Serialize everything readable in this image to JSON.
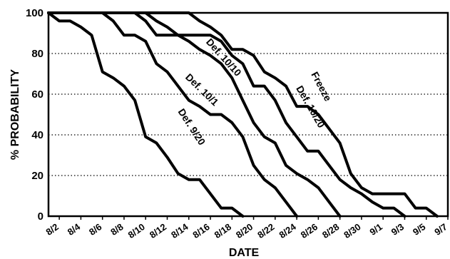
{
  "chart_data": {
    "type": "line",
    "xlabel": "DATE",
    "ylabel": "% PROBABILITY",
    "ylim": [
      0,
      100
    ],
    "yticks": [
      0,
      20,
      40,
      60,
      80,
      100
    ],
    "xticks": [
      "8/2",
      "8/4",
      "8/6",
      "8/8",
      "8/10",
      "8/12",
      "8/14",
      "8/16",
      "8/18",
      "8/20",
      "8/22",
      "8/24",
      "8/26",
      "8/28",
      "8/30",
      "9/1",
      "9/3",
      "9/5",
      "9/7"
    ],
    "xlim": [
      "8/1",
      "9/7"
    ],
    "grid": "dotted horizontal",
    "series": [
      {
        "name": "Def. 9/20",
        "points": [
          [
            "8/1",
            100
          ],
          [
            "8/2",
            96
          ],
          [
            "8/3",
            96
          ],
          [
            "8/4",
            93
          ],
          [
            "8/5",
            89
          ],
          [
            "8/6",
            71
          ],
          [
            "8/7",
            68
          ],
          [
            "8/8",
            64
          ],
          [
            "8/9",
            57
          ],
          [
            "8/10",
            39
          ],
          [
            "8/11",
            36
          ],
          [
            "8/12",
            29
          ],
          [
            "8/13",
            21
          ],
          [
            "8/14",
            18
          ],
          [
            "8/15",
            18
          ],
          [
            "8/16",
            11
          ],
          [
            "8/17",
            4
          ],
          [
            "8/18",
            4
          ],
          [
            "8/19",
            0
          ]
        ]
      },
      {
        "name": "Def. 10/1",
        "points": [
          [
            "8/1",
            100
          ],
          [
            "8/6",
            100
          ],
          [
            "8/7",
            96
          ],
          [
            "8/8",
            89
          ],
          [
            "8/9",
            89
          ],
          [
            "8/10",
            86
          ],
          [
            "8/11",
            75
          ],
          [
            "8/12",
            71
          ],
          [
            "8/13",
            64
          ],
          [
            "8/14",
            57
          ],
          [
            "8/15",
            54
          ],
          [
            "8/16",
            50
          ],
          [
            "8/17",
            50
          ],
          [
            "8/18",
            46
          ],
          [
            "8/19",
            39
          ],
          [
            "8/20",
            25
          ],
          [
            "8/21",
            18
          ],
          [
            "8/22",
            14
          ],
          [
            "8/23",
            7
          ],
          [
            "8/24",
            0
          ]
        ]
      },
      {
        "name": "Def. 10/10",
        "points": [
          [
            "8/1",
            100
          ],
          [
            "8/9",
            100
          ],
          [
            "8/10",
            96
          ],
          [
            "8/11",
            89
          ],
          [
            "8/12",
            89
          ],
          [
            "8/13",
            89
          ],
          [
            "8/14",
            86
          ],
          [
            "8/15",
            82
          ],
          [
            "8/16",
            79
          ],
          [
            "8/17",
            75
          ],
          [
            "8/18",
            68
          ],
          [
            "8/19",
            57
          ],
          [
            "8/20",
            46
          ],
          [
            "8/21",
            39
          ],
          [
            "8/22",
            36
          ],
          [
            "8/23",
            25
          ],
          [
            "8/24",
            21
          ],
          [
            "8/25",
            18
          ],
          [
            "8/26",
            14
          ],
          [
            "8/27",
            7
          ],
          [
            "8/28",
            0
          ]
        ]
      },
      {
        "name": "Def. 10/20",
        "points": [
          [
            "8/1",
            100
          ],
          [
            "8/10",
            100
          ],
          [
            "8/11",
            96
          ],
          [
            "8/12",
            93
          ],
          [
            "8/13",
            89
          ],
          [
            "8/14",
            89
          ],
          [
            "8/15",
            89
          ],
          [
            "8/16",
            89
          ],
          [
            "8/17",
            86
          ],
          [
            "8/18",
            79
          ],
          [
            "8/19",
            75
          ],
          [
            "8/20",
            64
          ],
          [
            "8/21",
            64
          ],
          [
            "8/22",
            57
          ],
          [
            "8/23",
            46
          ],
          [
            "8/24",
            39
          ],
          [
            "8/25",
            32
          ],
          [
            "8/26",
            32
          ],
          [
            "8/27",
            25
          ],
          [
            "8/28",
            18
          ],
          [
            "8/29",
            14
          ],
          [
            "8/30",
            11
          ],
          [
            "8/31",
            7
          ],
          [
            "9/1",
            4
          ],
          [
            "9/2",
            4
          ],
          [
            "9/3",
            0
          ]
        ]
      },
      {
        "name": "Freeze",
        "points": [
          [
            "8/1",
            100
          ],
          [
            "8/14",
            100
          ],
          [
            "8/15",
            96
          ],
          [
            "8/16",
            93
          ],
          [
            "8/17",
            89
          ],
          [
            "8/18",
            82
          ],
          [
            "8/19",
            82
          ],
          [
            "8/20",
            79
          ],
          [
            "8/21",
            71
          ],
          [
            "8/22",
            68
          ],
          [
            "8/23",
            64
          ],
          [
            "8/24",
            54
          ],
          [
            "8/25",
            54
          ],
          [
            "8/26",
            50
          ],
          [
            "8/27",
            43
          ],
          [
            "8/28",
            36
          ],
          [
            "8/29",
            21
          ],
          [
            "8/30",
            14
          ],
          [
            "8/31",
            11
          ],
          [
            "9/1",
            11
          ],
          [
            "9/2",
            11
          ],
          [
            "9/3",
            11
          ],
          [
            "9/4",
            4
          ],
          [
            "9/5",
            4
          ],
          [
            "9/6",
            0
          ]
        ]
      }
    ]
  }
}
